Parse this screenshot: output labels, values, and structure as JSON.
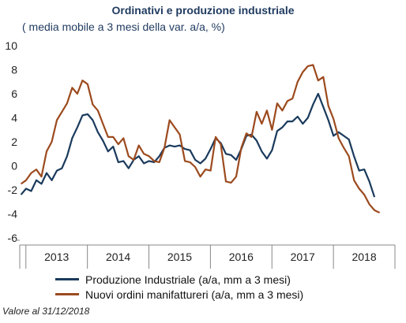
{
  "chart_data": {
    "type": "line",
    "title": "Ordinativi e produzione industriale",
    "subtitle": "( media mobile a 3 mesi della var. a/a, %)",
    "ylim": [
      -6,
      10
    ],
    "yticks": [
      "-6",
      "-4",
      "-2",
      "0",
      "2",
      "4",
      "6",
      "8",
      "10"
    ],
    "x_start": 2012.92,
    "x_step": 0.0833,
    "xlim": [
      2012.9,
      2019.0
    ],
    "x_tick_labels": [
      "2013",
      "2014",
      "2015",
      "2016",
      "2017",
      "2018"
    ],
    "grid": false,
    "legend_position": "bottom",
    "series": [
      {
        "name": "Produzione Industriale (a/a, mm a 3 mesi)",
        "color": "#1a3a5c",
        "values": [
          -2.4,
          -1.9,
          -2.1,
          -1.2,
          -1.5,
          -0.6,
          -1.2,
          -0.4,
          -0.2,
          0.8,
          2.3,
          3.2,
          4.2,
          4.3,
          3.8,
          2.8,
          2.1,
          1.2,
          1.6,
          0.3,
          0.4,
          -0.2,
          0.5,
          0.8,
          0.2,
          0.4,
          0.3,
          0.8,
          1.5,
          1.7,
          1.6,
          1.7,
          1.4,
          1.3,
          0.5,
          0.2,
          0.6,
          1.4,
          2.3,
          1.9,
          1.0,
          0.9,
          0.5,
          1.4,
          2.5,
          2.6,
          2.1,
          1.2,
          0.6,
          1.3,
          2.9,
          3.2,
          3.7,
          3.7,
          4.1,
          3.5,
          4.0,
          5.1,
          6.0,
          4.9,
          3.8,
          2.5,
          2.8,
          2.5,
          2.2,
          0.8,
          -0.4,
          -0.3,
          -1.3,
          -2.6
        ]
      },
      {
        "name": "Nuovi ordini manifattureri (a/a, mm a 3 mesi)",
        "color": "#9c4a1e",
        "values": [
          -1.5,
          -1.2,
          -0.6,
          -0.3,
          -0.9,
          1.2,
          2.0,
          3.8,
          4.5,
          5.2,
          6.5,
          6.0,
          7.1,
          6.8,
          5.1,
          4.6,
          3.5,
          2.4,
          2.4,
          1.8,
          2.3,
          0.8,
          0.5,
          1.7,
          1.0,
          0.8,
          0.4,
          0.3,
          1.5,
          3.8,
          3.2,
          2.6,
          0.4,
          0.3,
          -0.1,
          -0.9,
          -0.3,
          -0.4,
          2.4,
          1.8,
          -1.3,
          -1.4,
          -0.9,
          1.5,
          2.7,
          2.4,
          4.5,
          3.5,
          4.6,
          3.0,
          5.2,
          4.6,
          5.4,
          5.6,
          7.0,
          7.8,
          8.3,
          8.4,
          7.1,
          7.4,
          5.0,
          3.9,
          2.3,
          1.5,
          0.8,
          -1.2,
          -1.9,
          -2.4,
          -3.2,
          -3.7,
          -3.9
        ]
      }
    ]
  },
  "legend": {
    "items": [
      {
        "label": "Produzione Industriale (a/a, mm a 3 mesi)",
        "color": "#1a3a5c"
      },
      {
        "label": "Nuovi ordini manifattureri (a/a, mm a 3 mesi)",
        "color": "#9c4a1e"
      }
    ]
  },
  "footnote": "Valore al 31/12/2018"
}
